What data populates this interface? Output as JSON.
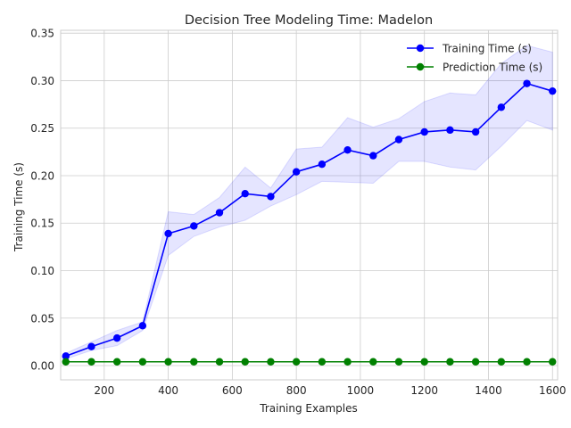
{
  "chart_data": {
    "type": "line",
    "title": "Decision Tree Modeling Time: Madelon",
    "xlabel": "Training Examples",
    "ylabel": "Training Time (s)",
    "xlim": [
      64,
      1616
    ],
    "ylim": [
      -0.015,
      0.353
    ],
    "grid": true,
    "legend_position": "top-right",
    "x": [
      80,
      160,
      240,
      320,
      400,
      480,
      560,
      640,
      720,
      800,
      880,
      960,
      1040,
      1120,
      1200,
      1280,
      1360,
      1440,
      1520,
      1600
    ],
    "x_ticks": [
      200,
      400,
      600,
      800,
      1000,
      1200,
      1400,
      1600
    ],
    "x_tick_labels": [
      "200",
      "400",
      "600",
      "800",
      "1000",
      "1200",
      "1400",
      "1600"
    ],
    "y_ticks": [
      0.0,
      0.05,
      0.1,
      0.15,
      0.2,
      0.25,
      0.3,
      0.35
    ],
    "y_tick_labels": [
      "0.00",
      "0.05",
      "0.10",
      "0.15",
      "0.20",
      "0.25",
      "0.30",
      "0.35"
    ],
    "series": [
      {
        "name": "Training Time (s)",
        "color": "#0000ff",
        "values": [
          0.01,
          0.02,
          0.029,
          0.042,
          0.139,
          0.147,
          0.161,
          0.181,
          0.178,
          0.204,
          0.212,
          0.227,
          0.221,
          0.238,
          0.246,
          0.248,
          0.246,
          0.272,
          0.297,
          0.289
        ],
        "band_upper": [
          0.013,
          0.025,
          0.037,
          0.046,
          0.162,
          0.159,
          0.177,
          0.209,
          0.187,
          0.228,
          0.23,
          0.261,
          0.251,
          0.26,
          0.278,
          0.287,
          0.285,
          0.318,
          0.337,
          0.33
        ],
        "band_lower": [
          0.007,
          0.016,
          0.021,
          0.037,
          0.116,
          0.136,
          0.146,
          0.153,
          0.168,
          0.18,
          0.194,
          0.193,
          0.192,
          0.215,
          0.215,
          0.209,
          0.206,
          0.231,
          0.258,
          0.248
        ]
      },
      {
        "name": "Prediction Time (s)",
        "color": "#008000",
        "values": [
          0.004,
          0.004,
          0.004,
          0.004,
          0.004,
          0.004,
          0.004,
          0.004,
          0.004,
          0.004,
          0.004,
          0.004,
          0.004,
          0.004,
          0.004,
          0.004,
          0.004,
          0.004,
          0.004,
          0.004
        ]
      }
    ]
  }
}
